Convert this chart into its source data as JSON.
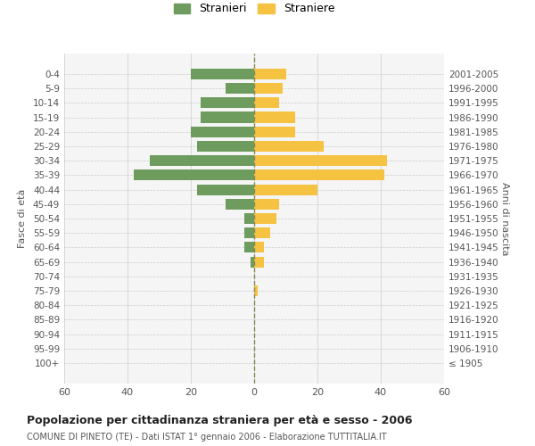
{
  "age_groups": [
    "100+",
    "95-99",
    "90-94",
    "85-89",
    "80-84",
    "75-79",
    "70-74",
    "65-69",
    "60-64",
    "55-59",
    "50-54",
    "45-49",
    "40-44",
    "35-39",
    "30-34",
    "25-29",
    "20-24",
    "15-19",
    "10-14",
    "5-9",
    "0-4"
  ],
  "birth_years": [
    "≤ 1905",
    "1906-1910",
    "1911-1915",
    "1916-1920",
    "1921-1925",
    "1926-1930",
    "1931-1935",
    "1936-1940",
    "1941-1945",
    "1946-1950",
    "1951-1955",
    "1956-1960",
    "1961-1965",
    "1966-1970",
    "1971-1975",
    "1976-1980",
    "1981-1985",
    "1986-1990",
    "1991-1995",
    "1996-2000",
    "2001-2005"
  ],
  "males": [
    0,
    0,
    0,
    0,
    0,
    0,
    0,
    1,
    3,
    3,
    3,
    9,
    18,
    38,
    33,
    18,
    20,
    17,
    17,
    9,
    20
  ],
  "females": [
    0,
    0,
    0,
    0,
    0,
    1,
    0,
    3,
    3,
    5,
    7,
    8,
    20,
    41,
    42,
    22,
    13,
    13,
    8,
    9,
    10
  ],
  "male_color": "#6e9c5e",
  "female_color": "#f5c242",
  "background_color": "#ffffff",
  "grid_color": "#cccccc",
  "title": "Popolazione per cittadinanza straniera per età e sesso - 2006",
  "subtitle": "COMUNE DI PINETO (TE) - Dati ISTAT 1° gennaio 2006 - Elaborazione TUTTITALIA.IT",
  "ylabel_left": "Fasce di età",
  "ylabel_right": "Anni di nascita",
  "xlim": 60,
  "legend_male": "Stranieri",
  "legend_female": "Straniere"
}
